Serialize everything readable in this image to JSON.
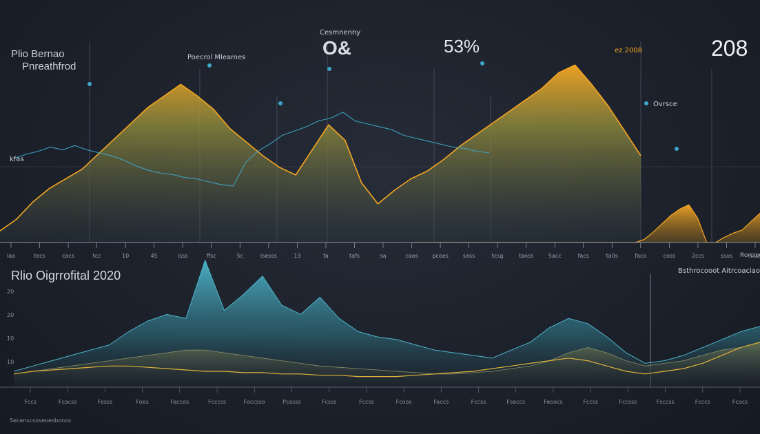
{
  "colors": {
    "background": "#1c212b",
    "orange": "#f5a623",
    "olive": "#6b7350",
    "teal": "#4fb6cc",
    "cyan": "#3ea8c9",
    "grid": "#5a6270",
    "text": "#c9d0da"
  },
  "texts": {
    "top_left_line1": "Plio Bernao",
    "top_left_line2": "Pnreathfrod",
    "peak_label": "Poecrol Mleames",
    "top_center_title": "Cesmnenny",
    "top_center_glyph": "O&",
    "top_pct": "53%",
    "top_year": "208",
    "top_right_label": "ez.2008",
    "mid_label": "Ovrsce",
    "left_mid_label": "kfas",
    "bottom_title": "Rlio Oigrrofital 2020",
    "bottom_right_header": "Bsthrocooot Aitrcoaciaov",
    "footer": "Secenscsoseoesbonos",
    "right_corner_label": "Rorcoxe"
  },
  "chart_data": [
    {
      "type": "area",
      "series": [
        {
          "values": [
            0.06,
            0.12,
            0.21,
            0.28,
            0.33,
            0.38,
            0.46,
            0.54,
            0.62,
            0.7,
            0.76,
            0.82,
            0.76,
            0.69,
            0.59,
            0.52,
            0.45,
            0.39,
            0.35,
            0.48,
            0.61,
            0.53,
            0.31,
            0.2,
            0.27,
            0.33,
            0.37,
            0.43,
            0.5,
            0.56,
            0.62,
            0.68,
            0.74,
            0.8,
            0.88,
            0.92,
            0.82,
            0.71,
            0.58,
            0.45
          ]
        },
        {
          "values": [
            0.0,
            0.0,
            0.0,
            0.0,
            0.0,
            0.0,
            0.0,
            0.0,
            0.0,
            0.0,
            0.0,
            0.0,
            0.0,
            0.0,
            0.0,
            0.0,
            0.0,
            0.0,
            0.0,
            0.0,
            0.0,
            0.0,
            0.0,
            0.0,
            0.0,
            0.0,
            0.03,
            0.1,
            0.18,
            0.26,
            0.32,
            0.36,
            0.23,
            0.0,
            0.0,
            0.05,
            0.09,
            0.12,
            0.2,
            0.28
          ]
        },
        {
          "values": [
            0.58,
            0.61,
            0.63,
            0.66,
            0.64,
            0.67,
            0.64,
            0.62,
            0.6,
            0.57,
            0.53,
            0.5,
            0.48,
            0.47,
            0.45,
            0.44,
            0.42,
            0.4,
            0.39,
            0.55,
            0.63,
            0.68,
            0.74,
            0.77,
            0.8,
            0.84,
            0.86,
            0.9,
            0.84,
            0.82,
            0.8,
            0.78,
            0.74,
            0.72,
            0.7,
            0.68,
            0.66,
            0.65,
            0.63,
            0.62
          ]
        }
      ],
      "ylim": [
        0,
        1
      ],
      "tick_labels": [
        "laa",
        "tecs",
        "cacs",
        "tcc",
        "10",
        "45",
        "lsss",
        "ffsc",
        "5c",
        "lsesss",
        "13",
        "fa",
        "tafs",
        "sa",
        "caos",
        "pcoes",
        "sass",
        "tcsg",
        "tanss",
        "5acc",
        "facs",
        "ta0s",
        "faco",
        "coss",
        "2ccs",
        "ssos",
        "soss"
      ]
    },
    {
      "type": "area",
      "series": [
        {
          "values": [
            0.12,
            0.16,
            0.2,
            0.24,
            0.28,
            0.32,
            0.42,
            0.5,
            0.55,
            0.52,
            0.96,
            0.58,
            0.7,
            0.84,
            0.62,
            0.55,
            0.68,
            0.52,
            0.42,
            0.38,
            0.36,
            0.32,
            0.28,
            0.26,
            0.24,
            0.22,
            0.28,
            0.34,
            0.45,
            0.52,
            0.48,
            0.38,
            0.26,
            0.18,
            0.2,
            0.24,
            0.3,
            0.36,
            0.42,
            0.46
          ]
        },
        {
          "values": [
            0.1,
            0.12,
            0.14,
            0.16,
            0.18,
            0.2,
            0.22,
            0.24,
            0.26,
            0.28,
            0.28,
            0.26,
            0.24,
            0.22,
            0.2,
            0.18,
            0.16,
            0.15,
            0.14,
            0.13,
            0.12,
            0.11,
            0.1,
            0.1,
            0.11,
            0.12,
            0.14,
            0.16,
            0.2,
            0.26,
            0.3,
            0.26,
            0.2,
            0.16,
            0.18,
            0.2,
            0.24,
            0.28,
            0.3,
            0.34
          ]
        },
        {
          "values": [
            0.1,
            0.12,
            0.13,
            0.14,
            0.15,
            0.16,
            0.16,
            0.15,
            0.14,
            0.13,
            0.12,
            0.12,
            0.11,
            0.11,
            0.1,
            0.1,
            0.09,
            0.09,
            0.08,
            0.08,
            0.08,
            0.09,
            0.1,
            0.11,
            0.12,
            0.14,
            0.16,
            0.18,
            0.2,
            0.22,
            0.2,
            0.16,
            0.12,
            0.1,
            0.12,
            0.14,
            0.18,
            0.24,
            0.3,
            0.34
          ]
        }
      ],
      "ylim": [
        0,
        1
      ],
      "tick_labels": [
        "20",
        "20",
        "10",
        "10"
      ],
      "x_tick_labels": [
        "Fccs",
        "Fcacss",
        "Fesss",
        "Foes",
        "Faccos",
        "Fcccss",
        "Foccsso",
        "Pcasss",
        "Fcsss",
        "Fccss",
        "Fcoos",
        "Faccs",
        "Fccss",
        "Fseccs",
        "Feoocs",
        "Fccss",
        "Fccsss",
        "Fsccss",
        "Fcccs",
        "Fcocs"
      ]
    }
  ]
}
